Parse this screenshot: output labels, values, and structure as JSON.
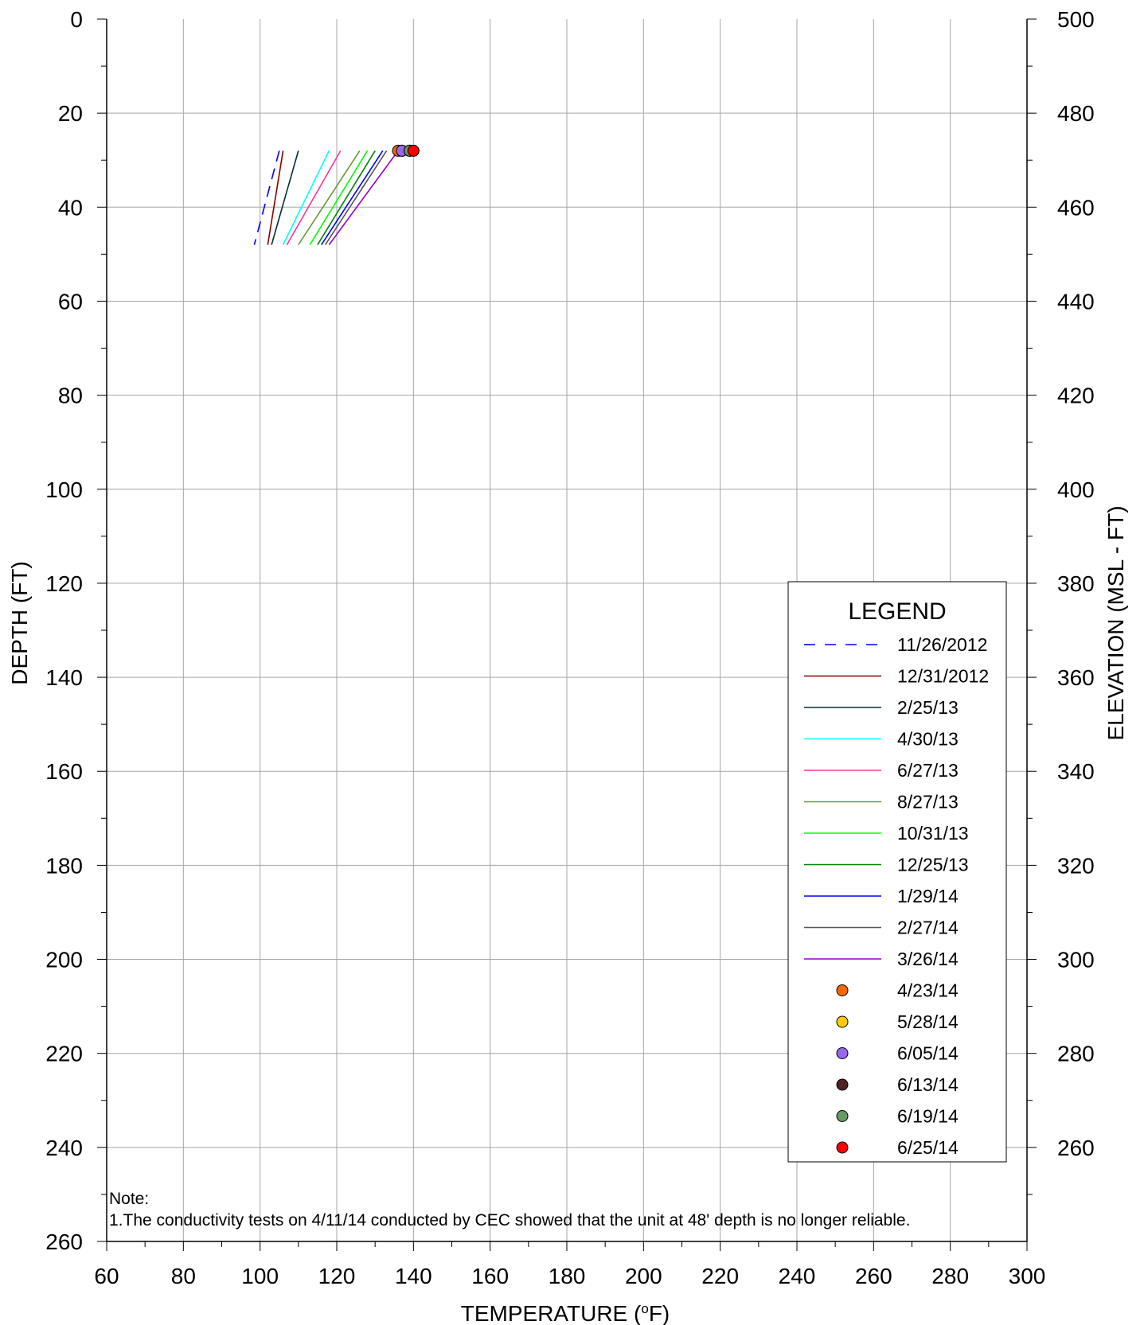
{
  "chart_data": {
    "type": "line",
    "xlabel": "TEMPERATURE (",
    "xlabel_super": "o",
    "xlabel_end": "F)",
    "ylabel_left": "DEPTH (FT)",
    "ylabel_right": "ELEVATION (MSL - FT)",
    "xlim": [
      60,
      300
    ],
    "ylim_left": [
      0,
      260
    ],
    "ylim_right": [
      240,
      500
    ],
    "y_inverted": true,
    "grid": true,
    "x_ticks": [
      60,
      80,
      100,
      120,
      140,
      160,
      180,
      200,
      220,
      240,
      260,
      280,
      300
    ],
    "y_ticks_left": [
      0,
      20,
      40,
      60,
      80,
      100,
      120,
      140,
      160,
      180,
      200,
      220,
      240,
      260
    ],
    "y_ticks_right": [
      500,
      480,
      460,
      440,
      420,
      400,
      380,
      360,
      340,
      320,
      300,
      280,
      260
    ],
    "legend_title": "LEGEND",
    "legend_position": "lower-right",
    "note_title": "Note:",
    "note_text": "1.The conductivity tests on 4/11/14 conducted by CEC showed that the unit at 48' depth is no longer reliable.",
    "series": [
      {
        "name": "11/26/2012",
        "color": "#0000ff",
        "dashed": true,
        "x": [
          105,
          98.5
        ],
        "y": [
          28,
          48
        ]
      },
      {
        "name": "12/31/2012",
        "color": "#8b0000",
        "x": [
          106,
          102
        ],
        "y": [
          28,
          48
        ]
      },
      {
        "name": "2/25/13",
        "color": "#003333",
        "x": [
          110,
          103
        ],
        "y": [
          28,
          48
        ]
      },
      {
        "name": "4/30/13",
        "color": "#00ffff",
        "x": [
          118,
          106
        ],
        "y": [
          28,
          48
        ]
      },
      {
        "name": "6/27/13",
        "color": "#ff3399",
        "x": [
          121,
          107
        ],
        "y": [
          28,
          48
        ]
      },
      {
        "name": "8/27/13",
        "color": "#669933",
        "x": [
          126,
          110
        ],
        "y": [
          28,
          48
        ]
      },
      {
        "name": "10/31/13",
        "color": "#00ff00",
        "x": [
          128,
          113
        ],
        "y": [
          28,
          48
        ]
      },
      {
        "name": "12/25/13",
        "color": "#008000",
        "x": [
          130,
          115
        ],
        "y": [
          28,
          48
        ]
      },
      {
        "name": "1/29/14",
        "color": "#0000ff",
        "x": [
          132,
          116
        ],
        "y": [
          28,
          48
        ]
      },
      {
        "name": "2/27/14",
        "color": "#555555",
        "x": [
          133,
          117
        ],
        "y": [
          28,
          48
        ]
      },
      {
        "name": "3/26/14",
        "color": "#9900cc",
        "x": [
          136,
          118
        ],
        "y": [
          28,
          48
        ]
      }
    ],
    "points": [
      {
        "name": "4/23/14",
        "color": "#ff6600",
        "x": 136,
        "y": 28
      },
      {
        "name": "5/28/14",
        "color": "#ffcc00",
        "x": 137,
        "y": 28
      },
      {
        "name": "6/05/14",
        "color": "#9966ee",
        "x": 137,
        "y": 28
      },
      {
        "name": "6/13/14",
        "color": "#4d2222",
        "x": 139,
        "y": 28
      },
      {
        "name": "6/19/14",
        "color": "#669966",
        "x": 139,
        "y": 28
      },
      {
        "name": "6/25/14",
        "color": "#ff0000",
        "x": 140,
        "y": 28
      }
    ]
  }
}
